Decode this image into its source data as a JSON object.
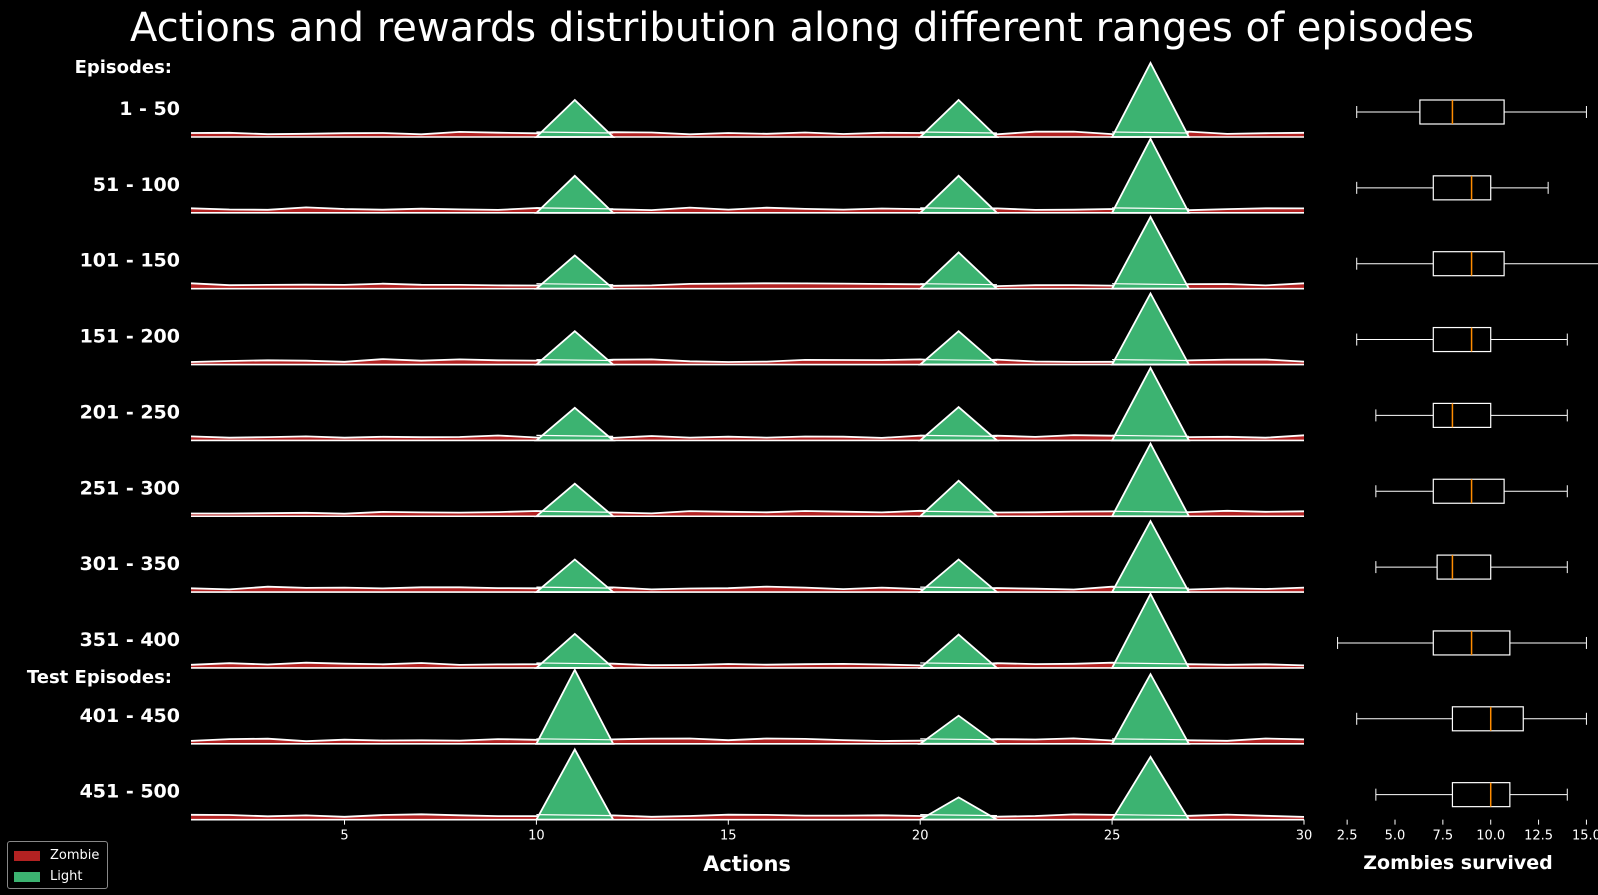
{
  "chart_data": {
    "type": "ridgeline",
    "title": "Actions and rewards distribution along different ranges of episodes",
    "group_headers": [
      "Episodes:",
      "Test Episodes:"
    ],
    "xlabel": "Actions",
    "xlim": [
      1,
      30
    ],
    "xticks": [
      5,
      10,
      15,
      20,
      25,
      30
    ],
    "box_xlabel": "Zombies survived",
    "box_xlim": [
      1.5,
      15.5
    ],
    "box_xticks": [
      "2.5",
      "5.0",
      "7.5",
      "10.0",
      "12.5",
      "15.0"
    ],
    "colors": {
      "zombie": "#b22222",
      "light": "#3cb371",
      "median": "#ff8c00",
      "background": "#000000",
      "line": "#ffffff"
    },
    "legend": [
      {
        "label": "Zombie",
        "color": "#b22222"
      },
      {
        "label": "Light",
        "color": "#3cb371"
      }
    ],
    "rows": [
      {
        "label": "1 - 50",
        "peaks": [
          0.5,
          0.5,
          1.0
        ],
        "box": {
          "min": 3,
          "q1": 6.3,
          "median": 8,
          "q3": 10.7,
          "max": 15
        }
      },
      {
        "label": "51 - 100",
        "peaks": [
          0.5,
          0.5,
          1.0
        ],
        "box": {
          "min": 3,
          "q1": 7,
          "median": 9,
          "q3": 10,
          "max": 13
        }
      },
      {
        "label": "101 - 150",
        "peaks": [
          0.45,
          0.49,
          0.97
        ],
        "box": {
          "min": 3,
          "q1": 7,
          "median": 9,
          "q3": 10.7,
          "max": 16
        }
      },
      {
        "label": "151 - 200",
        "peaks": [
          0.45,
          0.45,
          0.96
        ],
        "box": {
          "min": 3,
          "q1": 7,
          "median": 9,
          "q3": 10,
          "max": 14
        }
      },
      {
        "label": "201 - 250",
        "peaks": [
          0.44,
          0.45,
          0.98
        ],
        "box": {
          "min": 4,
          "q1": 7,
          "median": 8,
          "q3": 10,
          "max": 14
        }
      },
      {
        "label": "251 - 300",
        "peaks": [
          0.44,
          0.48,
          0.98
        ],
        "box": {
          "min": 4,
          "q1": 7,
          "median": 9,
          "q3": 10.7,
          "max": 14
        }
      },
      {
        "label": "301 - 350",
        "peaks": [
          0.44,
          0.44,
          0.96
        ],
        "box": {
          "min": 4,
          "q1": 7.2,
          "median": 8,
          "q3": 10,
          "max": 14
        }
      },
      {
        "label": "351 - 400",
        "peaks": [
          0.46,
          0.45,
          1.0
        ],
        "box": {
          "min": 2,
          "q1": 7,
          "median": 9,
          "q3": 11,
          "max": 15
        }
      },
      {
        "label": "401 - 450",
        "peaks": [
          1.0,
          0.38,
          0.94
        ],
        "box": {
          "min": 3,
          "q1": 8,
          "median": 10,
          "q3": 11.7,
          "max": 15
        }
      },
      {
        "label": "451 - 500",
        "peaks": [
          0.95,
          0.3,
          0.85
        ],
        "box": {
          "min": 4,
          "q1": 8,
          "median": 10,
          "q3": 11,
          "max": 14
        }
      }
    ]
  }
}
